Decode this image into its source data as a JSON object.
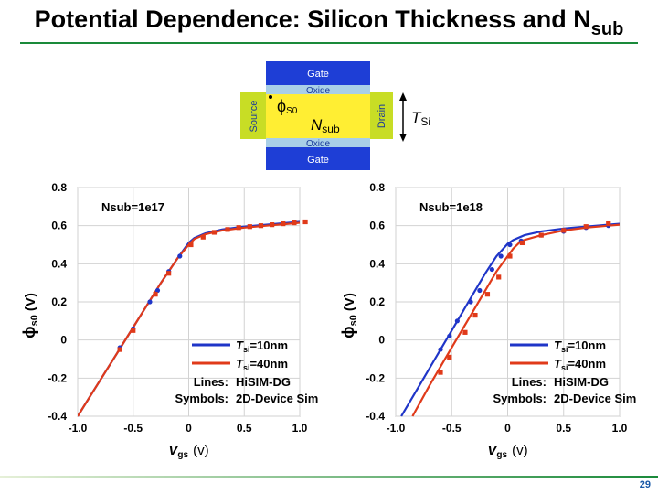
{
  "slide": {
    "title_main": "Potential Dependence: Silicon Thickness and N",
    "title_sub": "sub",
    "page_number": "29"
  },
  "device": {
    "gate_top": "Gate",
    "oxide_top": "Oxide",
    "source": "Source",
    "drain": "Drain",
    "phi_symbol": "ϕ",
    "phi_sub": "S0",
    "nsub_symbol": "N",
    "nsub_sub": "sub",
    "oxide_bottom": "Oxide",
    "gate_bottom": "Gate",
    "tsi_symbol": "T",
    "tsi_sub": "Si",
    "colors": {
      "gate": "#1e3ed6",
      "oxide": "#a9cfe7",
      "silicon": "#ffee33",
      "source_drain": "#c8dd25"
    }
  },
  "chart_data": [
    {
      "type": "line",
      "annotation": "Nsub=1e17",
      "ylabel_symbol": "ϕ",
      "ylabel_sub": "s0",
      "ylabel_unit": "(V)",
      "xlabel_symbol": "V",
      "xlabel_sub": "gs",
      "xlabel_unit": "(v)",
      "xlim": [
        -1.0,
        1.0
      ],
      "ylim": [
        -0.4,
        0.8
      ],
      "x_ticks": [
        "-1.0",
        "-0.5",
        "0",
        "0.5",
        "1.0"
      ],
      "y_ticks": [
        "0.8",
        "0.6",
        "0.4",
        "0.2",
        "0",
        "-0.2",
        "-0.4"
      ],
      "legend": {
        "s1_T": "T",
        "s1_sub": "si",
        "s1_val": "=10nm",
        "s2_T": "T",
        "s2_sub": "si",
        "s2_val": "=40nm",
        "lines_label": "Lines:",
        "lines_value": "HiSIM-DG",
        "symbols_label": "Symbols:",
        "symbols_value": "2D-Device Sim"
      },
      "series": [
        {
          "color": "#1f35c8",
          "line": {
            "x": [
              -1.0,
              -0.85,
              -0.7,
              -0.55,
              -0.4,
              -0.25,
              -0.1,
              0.0,
              0.05,
              0.15,
              0.3,
              0.5,
              0.7,
              0.9,
              1.0
            ],
            "y": [
              -0.4,
              -0.26,
              -0.12,
              0.02,
              0.16,
              0.3,
              0.43,
              0.51,
              0.535,
              0.56,
              0.58,
              0.595,
              0.605,
              0.615,
              0.62
            ]
          },
          "points": {
            "x": [
              -0.62,
              -0.5,
              -0.35,
              -0.28,
              -0.18,
              -0.08
            ],
            "y": [
              -0.04,
              0.06,
              0.2,
              0.26,
              0.36,
              0.44
            ]
          }
        },
        {
          "color": "#e03a1a",
          "line": {
            "x": [
              -1.0,
              -0.85,
              -0.7,
              -0.55,
              -0.4,
              -0.25,
              -0.1,
              0.0,
              0.05,
              0.15,
              0.3,
              0.5,
              0.7,
              0.9,
              1.0
            ],
            "y": [
              -0.4,
              -0.26,
              -0.12,
              0.02,
              0.16,
              0.3,
              0.43,
              0.5,
              0.53,
              0.555,
              0.575,
              0.59,
              0.6,
              0.61,
              0.615
            ]
          },
          "points": {
            "x": [
              -0.62,
              -0.5,
              -0.3,
              -0.18,
              0.02,
              0.13,
              0.23,
              0.35,
              0.45,
              0.55,
              0.65,
              0.75,
              0.85,
              0.95,
              1.05
            ],
            "y": [
              -0.05,
              0.05,
              0.24,
              0.35,
              0.5,
              0.54,
              0.565,
              0.58,
              0.59,
              0.595,
              0.6,
              0.605,
              0.61,
              0.615,
              0.62
            ]
          }
        }
      ]
    },
    {
      "type": "line",
      "annotation": "Nsub=1e18",
      "ylabel_symbol": "ϕ",
      "ylabel_sub": "s0",
      "ylabel_unit": "(V)",
      "xlabel_symbol": "V",
      "xlabel_sub": "gs",
      "xlabel_unit": "(v)",
      "xlim": [
        -1.0,
        1.0
      ],
      "ylim": [
        -0.4,
        0.8
      ],
      "x_ticks": [
        "-1.0",
        "-0.5",
        "0",
        "0.5",
        "1.0"
      ],
      "y_ticks": [
        "0.8",
        "0.6",
        "0.4",
        "0.2",
        "0",
        "-0.2",
        "-0.4"
      ],
      "legend": {
        "s1_T": "T",
        "s1_sub": "si",
        "s1_val": "=10nm",
        "s2_T": "T",
        "s2_sub": "si",
        "s2_val": "=40nm",
        "lines_label": "Lines:",
        "lines_value": "HiSIM-DG",
        "symbols_label": "Symbols:",
        "symbols_value": "2D-Device Sim"
      },
      "series": [
        {
          "color": "#1f35c8",
          "line": {
            "x": [
              -0.95,
              -0.8,
              -0.65,
              -0.5,
              -0.35,
              -0.2,
              -0.1,
              0.0,
              0.05,
              0.15,
              0.3,
              0.5,
              0.7,
              0.9,
              1.0
            ],
            "y": [
              -0.4,
              -0.25,
              -0.1,
              0.05,
              0.2,
              0.35,
              0.44,
              0.505,
              0.525,
              0.55,
              0.57,
              0.585,
              0.595,
              0.605,
              0.61
            ]
          },
          "points": {
            "x": [
              -0.6,
              -0.52,
              -0.45,
              -0.33,
              -0.25,
              -0.14,
              -0.06,
              0.02,
              0.12,
              0.3,
              0.5,
              0.7,
              0.9
            ],
            "y": [
              -0.05,
              0.02,
              0.1,
              0.2,
              0.26,
              0.37,
              0.44,
              0.5,
              0.52,
              0.55,
              0.57,
              0.59,
              0.6
            ]
          }
        },
        {
          "color": "#e03a1a",
          "line": {
            "x": [
              -0.85,
              -0.7,
              -0.55,
              -0.4,
              -0.25,
              -0.1,
              0.0,
              0.05,
              0.12,
              0.3,
              0.5,
              0.7,
              0.9,
              1.0
            ],
            "y": [
              -0.4,
              -0.24,
              -0.09,
              0.06,
              0.21,
              0.36,
              0.44,
              0.48,
              0.52,
              0.55,
              0.575,
              0.59,
              0.6,
              0.605
            ]
          },
          "points": {
            "x": [
              -0.6,
              -0.52,
              -0.38,
              -0.29,
              -0.18,
              -0.08,
              0.02,
              0.13,
              0.3,
              0.5,
              0.7,
              0.9
            ],
            "y": [
              -0.17,
              -0.09,
              0.04,
              0.13,
              0.24,
              0.33,
              0.44,
              0.51,
              0.55,
              0.575,
              0.595,
              0.61
            ]
          }
        }
      ]
    }
  ]
}
